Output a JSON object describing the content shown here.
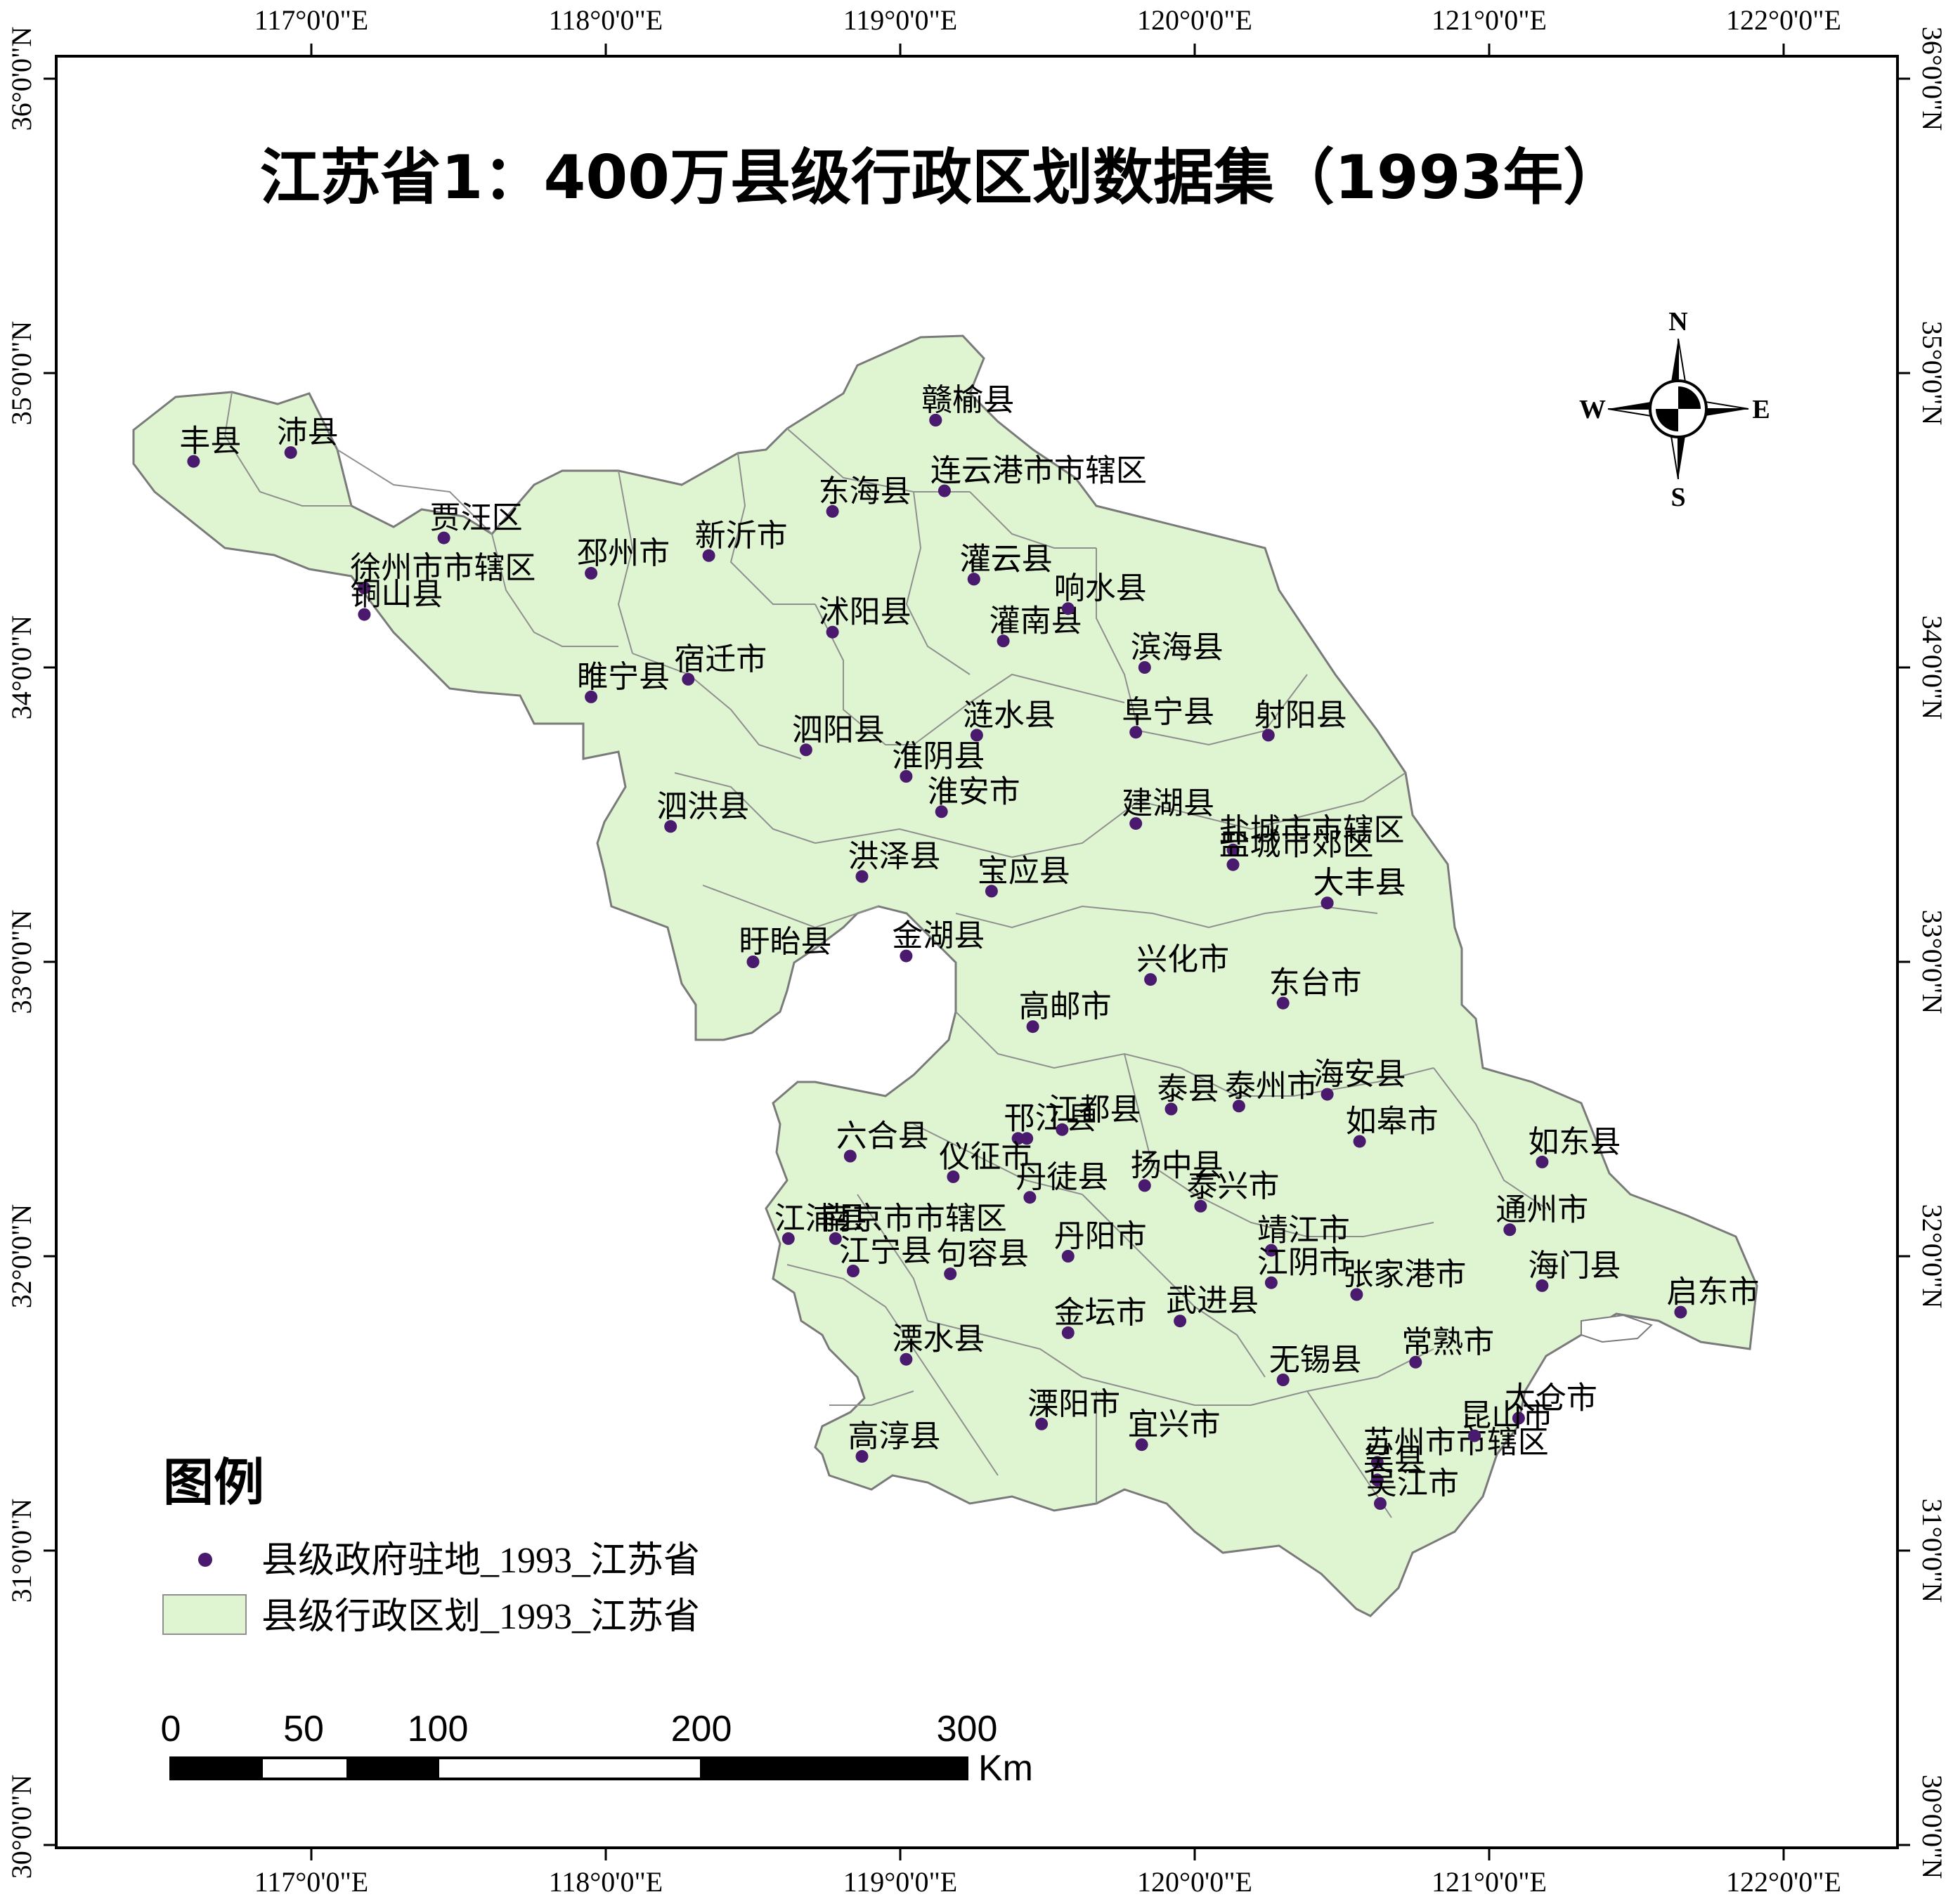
{
  "map": {
    "title": "江苏省1：400万县级行政区划数据集（1993年）",
    "lon_ticks": [
      "117°0'0\"E",
      "118°0'0\"E",
      "119°0'0\"E",
      "120°0'0\"E",
      "121°0'0\"E",
      "122°0'0\"E"
    ],
    "lat_ticks": [
      "36°0'0\"N",
      "35°0'0\"N",
      "34°0'0\"N",
      "33°0'0\"N",
      "32°0'0\"N",
      "31°0'0\"N",
      "30°0'0\"N"
    ],
    "colors": {
      "land_fill": "#dff5d2",
      "boundary": "#8f8f8f",
      "seat_dot": "#4a1a6e",
      "frame": "#000000"
    }
  },
  "places": [
    {
      "name": "丰县",
      "lon": 116.6,
      "lat": 34.7
    },
    {
      "name": "沛县",
      "lon": 116.93,
      "lat": 34.73
    },
    {
      "name": "贾汪区",
      "lon": 117.45,
      "lat": 34.44
    },
    {
      "name": "邳州市",
      "lon": 117.95,
      "lat": 34.32
    },
    {
      "name": "徐州市市辖区",
      "lon": 117.18,
      "lat": 34.27
    },
    {
      "name": "铜山县",
      "lon": 117.18,
      "lat": 34.18
    },
    {
      "name": "新沂市",
      "lon": 118.35,
      "lat": 34.38
    },
    {
      "name": "东海县",
      "lon": 118.77,
      "lat": 34.53
    },
    {
      "name": "赣榆县",
      "lon": 119.12,
      "lat": 34.84
    },
    {
      "name": "赣榆县",
      "lon": 119.12,
      "lat": 34.84
    },
    {
      "name": "连云港市市辖区",
      "lon": 119.15,
      "lat": 34.6
    },
    {
      "name": "灌云县",
      "lon": 119.25,
      "lat": 34.3
    },
    {
      "name": "灌云县",
      "lon": 119.25,
      "lat": 34.3
    },
    {
      "name": "沭阳县",
      "lon": 118.77,
      "lat": 34.12
    },
    {
      "name": "灌南县",
      "lon": 119.35,
      "lat": 34.09
    },
    {
      "name": "响水县",
      "lon": 119.57,
      "lat": 34.2
    },
    {
      "name": "滨海县",
      "lon": 119.83,
      "lat": 34.0
    },
    {
      "name": "睢宁县",
      "lon": 117.95,
      "lat": 33.9
    },
    {
      "name": "宿迁市",
      "lon": 118.28,
      "lat": 33.96
    },
    {
      "name": "涟水县",
      "lon": 119.26,
      "lat": 33.77
    },
    {
      "name": "阜宁县",
      "lon": 119.8,
      "lat": 33.78
    },
    {
      "name": "射阳县",
      "lon": 120.25,
      "lat": 33.77
    },
    {
      "name": "泗阳县",
      "lon": 118.68,
      "lat": 33.72
    },
    {
      "name": "淮阴县",
      "lon": 119.02,
      "lat": 33.63
    },
    {
      "name": "淮安市",
      "lon": 119.14,
      "lat": 33.51
    },
    {
      "name": "建湖县",
      "lon": 119.8,
      "lat": 33.47
    },
    {
      "name": "盐城市市辖区",
      "lon": 120.13,
      "lat": 33.38
    },
    {
      "name": "泗洪县",
      "lon": 118.22,
      "lat": 33.46
    },
    {
      "name": "洪泽县",
      "lon": 118.87,
      "lat": 33.29
    },
    {
      "name": "宝应县",
      "lon": 119.31,
      "lat": 33.24
    },
    {
      "name": "盐城市郊区",
      "lon": 120.13,
      "lat": 33.33
    },
    {
      "name": "大丰县",
      "lon": 120.45,
      "lat": 33.2
    },
    {
      "name": "大丰县",
      "lon": 120.45,
      "lat": 33.2
    },
    {
      "name": "金湖县",
      "lon": 119.02,
      "lat": 33.02
    },
    {
      "name": "盱眙县",
      "lon": 118.5,
      "lat": 33.0
    },
    {
      "name": "兴化市",
      "lon": 119.85,
      "lat": 32.94
    },
    {
      "name": "高邮市",
      "lon": 119.45,
      "lat": 32.78
    },
    {
      "name": "东台市",
      "lon": 120.3,
      "lat": 32.86
    },
    {
      "name": "邗江县",
      "lon": 119.4,
      "lat": 32.4
    },
    {
      "name": "江都县",
      "lon": 119.55,
      "lat": 32.43
    },
    {
      "name": "泰县",
      "lon": 119.92,
      "lat": 32.5
    },
    {
      "name": "海安县",
      "lon": 120.45,
      "lat": 32.55
    },
    {
      "name": "泰州市",
      "lon": 120.15,
      "lat": 32.51
    },
    {
      "name": "六合县",
      "lon": 118.83,
      "lat": 32.34
    },
    {
      "name": "仪征市",
      "lon": 119.18,
      "lat": 32.27
    },
    {
      "name": "仪征市2",
      "lon": 119.43,
      "lat": 32.4
    },
    {
      "name": "扬中县",
      "lon": 119.83,
      "lat": 32.24
    },
    {
      "name": "泰兴市",
      "lon": 120.02,
      "lat": 32.17
    },
    {
      "name": "如皋市",
      "lon": 120.56,
      "lat": 32.39
    },
    {
      "name": "如东县",
      "lon": 121.18,
      "lat": 32.32
    },
    {
      "name": "南京市市辖区",
      "lon": 118.78,
      "lat": 32.06
    },
    {
      "name": "丹徒县",
      "lon": 119.44,
      "lat": 32.2
    },
    {
      "name": "江浦县",
      "lon": 118.62,
      "lat": 32.06
    },
    {
      "name": "靖江市",
      "lon": 120.26,
      "lat": 32.02
    },
    {
      "name": "通州市",
      "lon": 121.07,
      "lat": 32.09
    },
    {
      "name": "海门县",
      "lon": 121.18,
      "lat": 31.9
    },
    {
      "name": "启东市",
      "lon": 121.65,
      "lat": 31.81
    },
    {
      "name": "江宁县",
      "lon": 118.84,
      "lat": 31.95
    },
    {
      "name": "句容县",
      "lon": 119.17,
      "lat": 31.94
    },
    {
      "name": "丹阳市",
      "lon": 119.57,
      "lat": 32.0
    },
    {
      "name": "江阴市",
      "lon": 120.26,
      "lat": 31.91
    },
    {
      "name": "张家港市",
      "lon": 120.55,
      "lat": 31.87
    },
    {
      "name": "金坛市",
      "lon": 119.57,
      "lat": 31.74
    },
    {
      "name": "武进县",
      "lon": 119.95,
      "lat": 31.78
    },
    {
      "name": "溧水县",
      "lon": 119.02,
      "lat": 31.65
    },
    {
      "name": "常熟市",
      "lon": 120.75,
      "lat": 31.64
    },
    {
      "name": "无锡县",
      "lon": 120.3,
      "lat": 31.58
    },
    {
      "name": "太仓市",
      "lon": 121.1,
      "lat": 31.45
    },
    {
      "name": "溧阳市",
      "lon": 119.48,
      "lat": 31.43
    },
    {
      "name": "宜兴市",
      "lon": 119.82,
      "lat": 31.36
    },
    {
      "name": "苏州市市辖区",
      "lon": 120.62,
      "lat": 31.3
    },
    {
      "name": "昆山市",
      "lon": 120.95,
      "lat": 31.39
    },
    {
      "name": "高淳县",
      "lon": 118.87,
      "lat": 31.32
    },
    {
      "name": "吴县",
      "lon": 120.62,
      "lat": 31.24
    },
    {
      "name": "吴江市",
      "lon": 120.63,
      "lat": 31.16
    }
  ],
  "compass": {
    "n": "N",
    "s": "S",
    "e": "E",
    "w": "W"
  },
  "legend": {
    "title": "图例",
    "seat_label": "县级政府驻地_1993_江苏省",
    "area_label": "县级行政区划_1993_江苏省"
  },
  "scalebar": {
    "labels": [
      "0",
      "50",
      "100",
      "200",
      "300"
    ],
    "unit": "Km"
  }
}
